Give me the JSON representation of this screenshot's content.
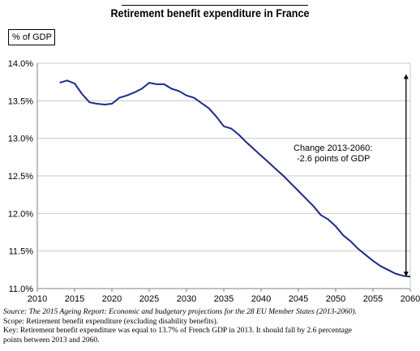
{
  "title": "Retirement benefit expenditure in France",
  "notes": {
    "source": "Source: The 2015 Ageing Report: Economic and budgetary projections for the 28 EU Member States (2013-2060).",
    "scope": "Scope: Retirement benefit expenditure (excluding disability benefits).",
    "key_line1": "Key: Retirement benefit expenditure was equal to 13.7% of French GDP in 2013. It should fall by 2.6 percentage",
    "key_line2": "points between 2013 and 2060."
  },
  "chart_data": {
    "type": "line",
    "title": "Retirement benefit expenditure in France",
    "ylabel": "% of GDP",
    "xlabel": "",
    "xlim": [
      2010,
      2060
    ],
    "ylim": [
      11.0,
      14.0
    ],
    "x_ticks": [
      2010,
      2015,
      2020,
      2025,
      2030,
      2035,
      2040,
      2045,
      2050,
      2055,
      2060
    ],
    "y_ticks": [
      "11.0%",
      "11.5%",
      "12.0%",
      "12.5%",
      "13.0%",
      "13.5%",
      "14.0%"
    ],
    "y_tick_values": [
      11.0,
      11.5,
      12.0,
      12.5,
      13.0,
      13.5,
      14.0
    ],
    "grid": "horizontal",
    "line_color": "#1a2a8c",
    "series": [
      {
        "x": [
          2013,
          2014,
          2015,
          2016,
          2017,
          2018,
          2019,
          2020,
          2021,
          2022,
          2023,
          2024,
          2025,
          2026,
          2027,
          2028,
          2029,
          2030,
          2031,
          2032,
          2033,
          2034,
          2035,
          2036,
          2037,
          2038,
          2039,
          2040,
          2041,
          2042,
          2043,
          2044,
          2045,
          2046,
          2047,
          2048,
          2049,
          2050,
          2051,
          2052,
          2053,
          2054,
          2055,
          2056,
          2057,
          2058,
          2059,
          2060
        ],
        "values": [
          13.74,
          13.77,
          13.73,
          13.59,
          13.48,
          13.46,
          13.45,
          13.46,
          13.54,
          13.57,
          13.61,
          13.66,
          13.74,
          13.72,
          13.72,
          13.66,
          13.63,
          13.57,
          13.54,
          13.47,
          13.4,
          13.29,
          13.16,
          13.13,
          13.05,
          12.95,
          12.86,
          12.77,
          12.68,
          12.59,
          12.5,
          12.4,
          12.3,
          12.2,
          12.1,
          11.98,
          11.92,
          11.83,
          11.71,
          11.63,
          11.53,
          11.45,
          11.37,
          11.3,
          11.25,
          11.2,
          11.17,
          11.16
        ]
      }
    ],
    "annotation": {
      "line1": "Change 2013-2060:",
      "line2": "-2.6 points of GDP",
      "arrow_from": 13.77,
      "arrow_to": 11.16,
      "arrow_x": 2059
    }
  }
}
